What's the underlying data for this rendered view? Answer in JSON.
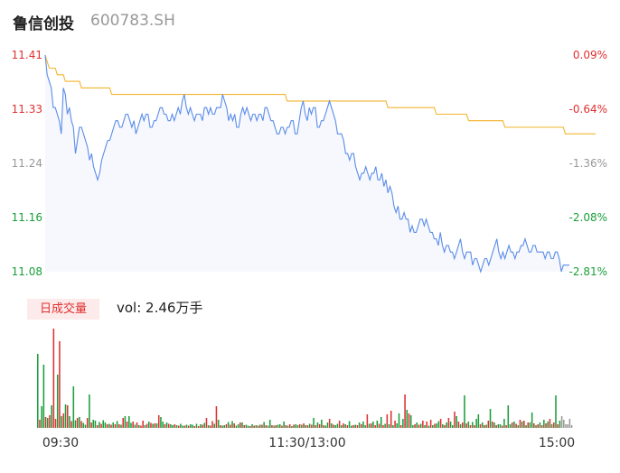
{
  "header": {
    "stock_name": "鲁信创投",
    "stock_code": "600783.SH"
  },
  "volume_panel": {
    "badge_label": "日成交量",
    "vol_prefix": "vol: ",
    "vol_value": "2.46万手"
  },
  "colors": {
    "price_line": "#5b8de8",
    "avg_line": "#f2b52e",
    "up": "#e03030",
    "down": "#1a9e3a",
    "neutral": "#999999",
    "area_fill": "#f6f8fd"
  },
  "chart_data": [
    {
      "type": "line",
      "title": "",
      "y_ticks_left": [
        "11.41",
        "11.33",
        "11.24",
        "11.16",
        "11.08"
      ],
      "y_ticks_right": [
        "0.09%",
        "-0.64%",
        "-1.36%",
        "-2.08%",
        "-2.81%"
      ],
      "y_tick_colors": [
        "up",
        "up",
        "neutral",
        "down",
        "down"
      ],
      "ylim": [
        11.08,
        11.41
      ],
      "x_ticks": [
        "09:30",
        "11:30/13:00",
        "15:00"
      ],
      "series": [
        {
          "values": [
            11.41,
            11.38,
            11.37,
            11.36,
            11.33,
            11.33,
            11.32,
            11.31,
            11.29,
            11.36,
            11.35,
            11.32,
            11.33,
            11.31,
            11.3,
            11.26,
            11.28,
            11.3,
            11.3,
            11.29,
            11.28,
            11.27,
            11.25,
            11.26,
            11.24,
            11.23,
            11.22,
            11.23,
            11.25,
            11.26,
            11.27,
            11.28,
            11.28,
            11.29,
            11.3,
            11.31,
            11.31,
            11.3,
            11.3,
            11.31,
            11.32,
            11.32,
            11.31,
            11.3,
            11.31,
            11.29,
            11.3,
            11.31,
            11.32,
            11.31,
            11.32,
            11.32,
            11.3,
            11.3,
            11.31,
            11.31,
            11.32,
            11.33,
            11.33,
            11.32,
            11.32,
            11.31,
            11.31,
            11.32,
            11.31,
            11.32,
            11.33,
            11.32,
            11.34,
            11.35,
            11.33,
            11.32,
            11.33,
            11.32,
            11.31,
            11.32,
            11.32,
            11.32,
            11.31,
            11.33,
            11.33,
            11.32,
            11.33,
            11.32,
            11.32,
            11.33,
            11.33,
            11.33,
            11.35,
            11.34,
            11.33,
            11.31,
            11.32,
            11.31,
            11.32,
            11.3,
            11.3,
            11.32,
            11.33,
            11.32,
            11.33,
            11.32,
            11.31,
            11.32,
            11.32,
            11.31,
            11.32,
            11.32,
            11.31,
            11.33,
            11.33,
            11.32,
            11.31,
            11.31,
            11.3,
            11.29,
            11.29,
            11.3,
            11.3,
            11.29,
            11.3,
            11.3,
            11.31,
            11.31,
            11.29,
            11.29,
            11.31,
            11.33,
            11.34,
            11.32,
            11.31,
            11.33,
            11.32,
            11.33,
            11.33,
            11.3,
            11.3,
            11.31,
            11.31,
            11.32,
            11.33,
            11.34,
            11.33,
            11.32,
            11.31,
            11.29,
            11.29,
            11.29,
            11.28,
            11.26,
            11.26,
            11.25,
            11.26,
            11.26,
            11.24,
            11.23,
            11.22,
            11.23,
            11.23,
            11.24,
            11.23,
            11.22,
            11.23,
            11.23,
            11.24,
            11.22,
            11.22,
            11.23,
            11.21,
            11.22,
            11.2,
            11.21,
            11.2,
            11.18,
            11.17,
            11.18,
            11.16,
            11.16,
            11.17,
            11.16,
            11.16,
            11.14,
            11.15,
            11.14,
            11.14,
            11.15,
            11.16,
            11.16,
            11.15,
            11.16,
            11.15,
            11.14,
            11.14,
            11.13,
            11.13,
            11.12,
            11.14,
            11.12,
            11.11,
            11.12,
            11.12,
            11.11,
            11.11,
            11.1,
            11.11,
            11.12,
            11.13,
            11.11,
            11.1,
            11.11,
            11.11,
            11.11,
            11.09,
            11.1,
            11.1,
            11.09,
            11.08,
            11.09,
            11.1,
            11.1,
            11.09,
            11.1,
            11.11,
            11.12,
            11.13,
            11.11,
            11.1,
            11.11,
            11.1,
            11.11,
            11.12,
            11.11,
            11.11,
            11.1,
            11.11,
            11.11,
            11.12,
            11.12,
            11.13,
            11.12,
            11.11,
            11.11,
            11.12,
            11.12,
            11.11,
            11.11,
            11.11,
            11.11,
            11.1,
            11.11,
            11.11,
            11.1,
            11.1,
            11.11,
            11.11,
            11.1,
            11.08,
            11.09,
            11.09,
            11.09,
            11.09
          ]
        },
        {
          "values": [
            11.41,
            11.4,
            11.39,
            11.39,
            11.39,
            11.39,
            11.38,
            11.38,
            11.38,
            11.38,
            11.37,
            11.37,
            11.37,
            11.37,
            11.37,
            11.37,
            11.37,
            11.37,
            11.36,
            11.36,
            11.36,
            11.36,
            11.36,
            11.36,
            11.36,
            11.36,
            11.36,
            11.36,
            11.36,
            11.36,
            11.36,
            11.36,
            11.36,
            11.35,
            11.35,
            11.35,
            11.35,
            11.35,
            11.35,
            11.35,
            11.35,
            11.35,
            11.35,
            11.35,
            11.35,
            11.35,
            11.35,
            11.35,
            11.35,
            11.35,
            11.35,
            11.35,
            11.35,
            11.35,
            11.35,
            11.35,
            11.35,
            11.35,
            11.35,
            11.35,
            11.35,
            11.35,
            11.35,
            11.35,
            11.35,
            11.35,
            11.35,
            11.35,
            11.35,
            11.35,
            11.35,
            11.35,
            11.35,
            11.35,
            11.35,
            11.35,
            11.35,
            11.35,
            11.35,
            11.35,
            11.35,
            11.35,
            11.35,
            11.35,
            11.35,
            11.35,
            11.35,
            11.35,
            11.35,
            11.35,
            11.35,
            11.35,
            11.35,
            11.35,
            11.35,
            11.35,
            11.35,
            11.35,
            11.35,
            11.35,
            11.35,
            11.35,
            11.35,
            11.35,
            11.35,
            11.35,
            11.35,
            11.35,
            11.35,
            11.35,
            11.35,
            11.35,
            11.35,
            11.35,
            11.35,
            11.35,
            11.35,
            11.35,
            11.35,
            11.35,
            11.34,
            11.34,
            11.34,
            11.34,
            11.34,
            11.34,
            11.34,
            11.34,
            11.34,
            11.34,
            11.34,
            11.34,
            11.34,
            11.34,
            11.34,
            11.34,
            11.34,
            11.34,
            11.34,
            11.34,
            11.34,
            11.34,
            11.34,
            11.34,
            11.34,
            11.34,
            11.34,
            11.34,
            11.34,
            11.34,
            11.34,
            11.34,
            11.34,
            11.34,
            11.34,
            11.34,
            11.34,
            11.34,
            11.34,
            11.34,
            11.34,
            11.34,
            11.34,
            11.34,
            11.34,
            11.34,
            11.34,
            11.34,
            11.34,
            11.34,
            11.33,
            11.33,
            11.33,
            11.33,
            11.33,
            11.33,
            11.33,
            11.33,
            11.33,
            11.33,
            11.33,
            11.33,
            11.33,
            11.33,
            11.33,
            11.33,
            11.33,
            11.33,
            11.33,
            11.33,
            11.33,
            11.33,
            11.33,
            11.33,
            11.32,
            11.32,
            11.32,
            11.32,
            11.32,
            11.32,
            11.32,
            11.32,
            11.32,
            11.32,
            11.32,
            11.32,
            11.32,
            11.32,
            11.32,
            11.32,
            11.31,
            11.31,
            11.31,
            11.31,
            11.31,
            11.31,
            11.31,
            11.31,
            11.31,
            11.31,
            11.31,
            11.31,
            11.31,
            11.31,
            11.31,
            11.31,
            11.31,
            11.31,
            11.3,
            11.3,
            11.3,
            11.3,
            11.3,
            11.3,
            11.3,
            11.3,
            11.3,
            11.3,
            11.3,
            11.3,
            11.3,
            11.3,
            11.3,
            11.3,
            11.3,
            11.3,
            11.3,
            11.3,
            11.3,
            11.3,
            11.3,
            11.3,
            11.3,
            11.3,
            11.3,
            11.3,
            11.3,
            11.3,
            11.29,
            11.29,
            11.29,
            11.29,
            11.29,
            11.29,
            11.29,
            11.29,
            11.29,
            11.29,
            11.29,
            11.29,
            11.29,
            11.29,
            11.29,
            11.29
          ]
        }
      ]
    },
    {
      "type": "bar",
      "title": "",
      "values": [
        820,
        90,
        240,
        700,
        120,
        110,
        140,
        250,
        1100,
        100,
        590,
        960,
        130,
        160,
        260,
        250,
        130,
        75,
        460,
        85,
        110,
        120,
        75,
        55,
        35,
        110,
        370,
        60,
        90,
        80,
        30,
        65,
        45,
        85,
        60,
        40,
        45,
        35,
        60,
        40,
        75,
        40,
        35,
        110,
        130,
        70,
        130,
        55,
        70,
        35,
        60,
        30,
        25,
        80,
        30,
        45,
        70,
        55,
        45,
        50,
        50,
        140,
        120,
        70,
        40,
        60,
        45,
        40,
        30,
        40,
        30,
        25,
        45,
        25,
        25,
        35,
        25,
        40,
        35,
        20,
        45,
        20,
        40,
        35,
        55,
        110,
        30,
        25,
        75,
        45,
        240,
        90,
        30,
        25,
        30,
        40,
        65,
        35,
        75,
        50,
        25,
        40,
        60,
        60,
        30,
        35,
        25,
        20,
        40,
        25,
        30,
        25,
        35,
        35,
        65,
        30,
        25,
        90,
        30,
        25,
        30,
        35,
        40,
        25,
        70,
        30,
        25,
        40,
        20,
        35,
        40,
        30,
        40,
        35,
        50,
        30,
        30,
        45,
        35,
        110,
        30,
        60,
        40,
        90,
        30,
        25,
        60,
        100,
        50,
        35,
        30,
        45,
        80,
        30,
        50,
        40,
        30,
        75,
        25,
        30,
        35,
        30,
        60,
        40,
        70,
        30,
        150,
        45,
        50,
        70,
        30,
        80,
        45,
        120,
        30,
        45,
        150,
        40,
        190,
        30,
        80,
        50,
        160,
        30,
        100,
        370,
        200,
        160,
        140,
        30,
        40,
        60,
        35,
        45,
        80,
        30,
        70,
        25,
        90,
        30,
        45,
        50,
        75,
        100,
        40,
        30,
        60,
        110,
        70,
        30,
        180,
        130,
        70,
        40,
        60,
        360,
        50,
        70,
        30,
        65,
        30,
        100,
        150,
        40,
        60,
        30,
        35,
        80,
        210,
        70,
        60,
        30,
        40,
        40,
        25,
        100,
        30,
        250,
        40,
        60,
        70,
        45,
        30,
        90,
        70,
        80,
        30,
        60,
        60,
        170,
        50,
        30,
        40,
        60,
        30,
        90,
        50,
        70,
        100,
        40,
        60,
        360,
        40,
        80,
        130,
        90,
        40,
        40,
        100,
        30
      ],
      "value_colors": [
        "down",
        "up",
        "down",
        "down",
        "up",
        "down",
        "up",
        "down",
        "up",
        "up",
        "down",
        "up",
        "down",
        "up",
        "down",
        "up",
        "down",
        "up",
        "down",
        "down",
        "up",
        "down",
        "up",
        "down",
        "down",
        "up",
        "down",
        "up",
        "down",
        "down",
        "up",
        "down",
        "up",
        "down",
        "down",
        "up",
        "down",
        "up",
        "down",
        "up",
        "down",
        "up",
        "down",
        "up",
        "down",
        "up",
        "down",
        "down",
        "up",
        "down",
        "up",
        "down",
        "up",
        "up",
        "down",
        "up",
        "down",
        "up",
        "down",
        "up",
        "down",
        "up",
        "down",
        "down",
        "up",
        "down",
        "up",
        "down",
        "down",
        "up",
        "down",
        "up",
        "down",
        "down",
        "up",
        "down",
        "up",
        "down",
        "down",
        "up",
        "down",
        "up",
        "down",
        "up",
        "down",
        "up",
        "down",
        "up",
        "up",
        "down",
        "up",
        "down",
        "up",
        "down",
        "down",
        "up",
        "down",
        "up",
        "down",
        "up",
        "down",
        "down",
        "up",
        "down",
        "up",
        "down",
        "down",
        "up",
        "down",
        "up",
        "down",
        "up",
        "down",
        "up",
        "down",
        "up",
        "down",
        "down",
        "up",
        "down",
        "up",
        "down",
        "down",
        "up",
        "down",
        "up",
        "down",
        "up",
        "down",
        "up",
        "down",
        "down",
        "up",
        "down",
        "up",
        "down",
        "up",
        "down",
        "up",
        "down",
        "up",
        "down",
        "up",
        "down",
        "up",
        "down",
        "down",
        "up",
        "down",
        "up",
        "down",
        "down",
        "up",
        "down",
        "up",
        "down",
        "up",
        "down",
        "down",
        "up",
        "down",
        "up",
        "down",
        "up",
        "down",
        "down",
        "up",
        "down",
        "up",
        "down",
        "up",
        "down",
        "up",
        "down",
        "up",
        "down",
        "up",
        "down",
        "up",
        "down",
        "up",
        "down",
        "down",
        "up",
        "down",
        "up",
        "down",
        "up",
        "down",
        "down",
        "up",
        "down",
        "up",
        "down",
        "up",
        "down",
        "up",
        "down",
        "up",
        "down",
        "up",
        "down",
        "down",
        "up",
        "down",
        "up",
        "down",
        "up",
        "down",
        "down",
        "up",
        "down",
        "up",
        "down",
        "up",
        "down",
        "up",
        "down",
        "up",
        "down",
        "up",
        "down",
        "down",
        "up",
        "down",
        "up",
        "down",
        "up",
        "down",
        "up",
        "down",
        "up",
        "down",
        "down",
        "up",
        "down",
        "up",
        "down",
        "down",
        "up",
        "down",
        "up",
        "down",
        "up",
        "down",
        "up",
        "down",
        "up",
        "down",
        "down",
        "up",
        "down",
        "up",
        "down",
        "up",
        "down",
        "up",
        "down",
        "up",
        "down",
        "up",
        "down",
        "up",
        "down"
      ]
    }
  ]
}
